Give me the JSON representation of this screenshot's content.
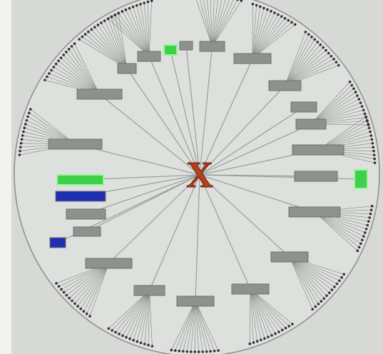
{
  "center": {
    "label": "X"
  }
}
